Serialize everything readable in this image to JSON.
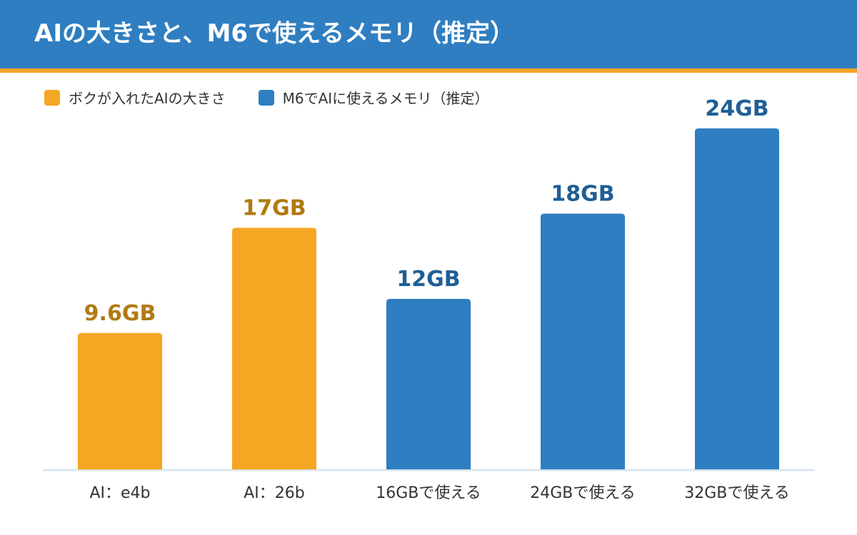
{
  "title": "AIの大きさと、M6で使えるメモリ（推定）",
  "colors": {
    "header_bg": "#2f7ec1",
    "header_accent": "#f5a623",
    "orange": "#f5a623",
    "orange_label": "#b07a10",
    "blue": "#2f7ec1",
    "blue_label": "#1f5f96",
    "axis": "#dbe4ee"
  },
  "legend": [
    {
      "label": "ボクが入れたAIの大きさ",
      "color": "#f5a623"
    },
    {
      "label": "M6でAIに使えるメモリ（推定）",
      "color": "#2f7ec1"
    }
  ],
  "chart_data": {
    "type": "bar",
    "title": "AIの大きさと、M6で使えるメモリ（推定）",
    "categories": [
      "AI：e4b",
      "AI：26b",
      "16GBで使える",
      "24GBで使える",
      "32GBで使える"
    ],
    "values": [
      9.6,
      17,
      12,
      18,
      24
    ],
    "value_labels": [
      "9.6GB",
      "17GB",
      "12GB",
      "18GB",
      "24GB"
    ],
    "series_of_bar": [
      "ボクが入れたAIの大きさ",
      "ボクが入れたAIの大きさ",
      "M6でAIに使えるメモリ（推定）",
      "M6でAIに使えるメモリ（推定）",
      "M6でAIに使えるメモリ（推定）"
    ],
    "unit": "GB",
    "ylim": [
      0,
      24
    ],
    "grid": false,
    "legend_position": "top-left"
  }
}
